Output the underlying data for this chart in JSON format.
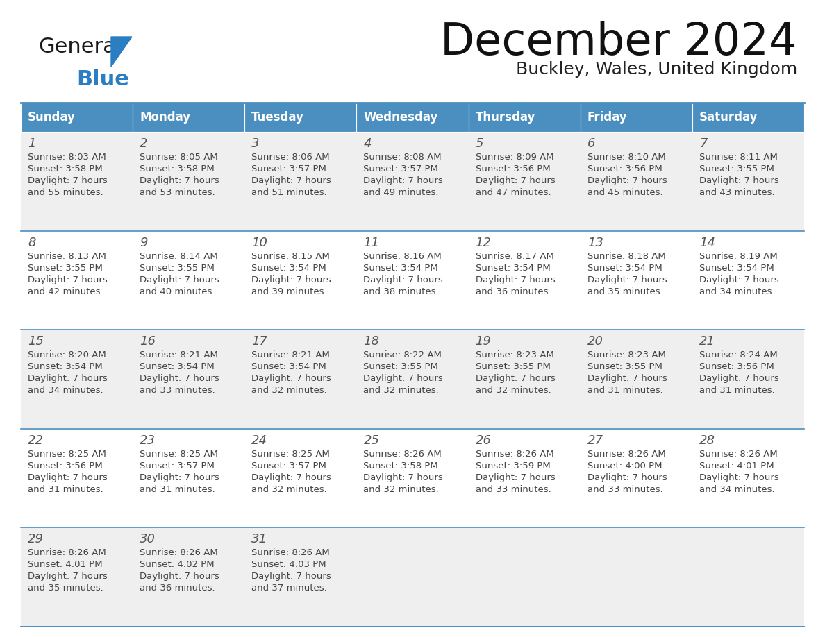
{
  "title": "December 2024",
  "subtitle": "Buckley, Wales, United Kingdom",
  "header_bg": "#4A8FC0",
  "header_text_color": "#FFFFFF",
  "days": [
    "Sunday",
    "Monday",
    "Tuesday",
    "Wednesday",
    "Thursday",
    "Friday",
    "Saturday"
  ],
  "row_bg_even": "#EFEFEF",
  "row_bg_odd": "#FFFFFF",
  "cell_data": [
    [
      {
        "day": 1,
        "sunrise": "8:03 AM",
        "sunset": "3:58 PM",
        "daylight": "7 hours\nand 55 minutes."
      },
      {
        "day": 2,
        "sunrise": "8:05 AM",
        "sunset": "3:58 PM",
        "daylight": "7 hours\nand 53 minutes."
      },
      {
        "day": 3,
        "sunrise": "8:06 AM",
        "sunset": "3:57 PM",
        "daylight": "7 hours\nand 51 minutes."
      },
      {
        "day": 4,
        "sunrise": "8:08 AM",
        "sunset": "3:57 PM",
        "daylight": "7 hours\nand 49 minutes."
      },
      {
        "day": 5,
        "sunrise": "8:09 AM",
        "sunset": "3:56 PM",
        "daylight": "7 hours\nand 47 minutes."
      },
      {
        "day": 6,
        "sunrise": "8:10 AM",
        "sunset": "3:56 PM",
        "daylight": "7 hours\nand 45 minutes."
      },
      {
        "day": 7,
        "sunrise": "8:11 AM",
        "sunset": "3:55 PM",
        "daylight": "7 hours\nand 43 minutes."
      }
    ],
    [
      {
        "day": 8,
        "sunrise": "8:13 AM",
        "sunset": "3:55 PM",
        "daylight": "7 hours\nand 42 minutes."
      },
      {
        "day": 9,
        "sunrise": "8:14 AM",
        "sunset": "3:55 PM",
        "daylight": "7 hours\nand 40 minutes."
      },
      {
        "day": 10,
        "sunrise": "8:15 AM",
        "sunset": "3:54 PM",
        "daylight": "7 hours\nand 39 minutes."
      },
      {
        "day": 11,
        "sunrise": "8:16 AM",
        "sunset": "3:54 PM",
        "daylight": "7 hours\nand 38 minutes."
      },
      {
        "day": 12,
        "sunrise": "8:17 AM",
        "sunset": "3:54 PM",
        "daylight": "7 hours\nand 36 minutes."
      },
      {
        "day": 13,
        "sunrise": "8:18 AM",
        "sunset": "3:54 PM",
        "daylight": "7 hours\nand 35 minutes."
      },
      {
        "day": 14,
        "sunrise": "8:19 AM",
        "sunset": "3:54 PM",
        "daylight": "7 hours\nand 34 minutes."
      }
    ],
    [
      {
        "day": 15,
        "sunrise": "8:20 AM",
        "sunset": "3:54 PM",
        "daylight": "7 hours\nand 34 minutes."
      },
      {
        "day": 16,
        "sunrise": "8:21 AM",
        "sunset": "3:54 PM",
        "daylight": "7 hours\nand 33 minutes."
      },
      {
        "day": 17,
        "sunrise": "8:21 AM",
        "sunset": "3:54 PM",
        "daylight": "7 hours\nand 32 minutes."
      },
      {
        "day": 18,
        "sunrise": "8:22 AM",
        "sunset": "3:55 PM",
        "daylight": "7 hours\nand 32 minutes."
      },
      {
        "day": 19,
        "sunrise": "8:23 AM",
        "sunset": "3:55 PM",
        "daylight": "7 hours\nand 32 minutes."
      },
      {
        "day": 20,
        "sunrise": "8:23 AM",
        "sunset": "3:55 PM",
        "daylight": "7 hours\nand 31 minutes."
      },
      {
        "day": 21,
        "sunrise": "8:24 AM",
        "sunset": "3:56 PM",
        "daylight": "7 hours\nand 31 minutes."
      }
    ],
    [
      {
        "day": 22,
        "sunrise": "8:25 AM",
        "sunset": "3:56 PM",
        "daylight": "7 hours\nand 31 minutes."
      },
      {
        "day": 23,
        "sunrise": "8:25 AM",
        "sunset": "3:57 PM",
        "daylight": "7 hours\nand 31 minutes."
      },
      {
        "day": 24,
        "sunrise": "8:25 AM",
        "sunset": "3:57 PM",
        "daylight": "7 hours\nand 32 minutes."
      },
      {
        "day": 25,
        "sunrise": "8:26 AM",
        "sunset": "3:58 PM",
        "daylight": "7 hours\nand 32 minutes."
      },
      {
        "day": 26,
        "sunrise": "8:26 AM",
        "sunset": "3:59 PM",
        "daylight": "7 hours\nand 33 minutes."
      },
      {
        "day": 27,
        "sunrise": "8:26 AM",
        "sunset": "4:00 PM",
        "daylight": "7 hours\nand 33 minutes."
      },
      {
        "day": 28,
        "sunrise": "8:26 AM",
        "sunset": "4:01 PM",
        "daylight": "7 hours\nand 34 minutes."
      }
    ],
    [
      {
        "day": 29,
        "sunrise": "8:26 AM",
        "sunset": "4:01 PM",
        "daylight": "7 hours\nand 35 minutes."
      },
      {
        "day": 30,
        "sunrise": "8:26 AM",
        "sunset": "4:02 PM",
        "daylight": "7 hours\nand 36 minutes."
      },
      {
        "day": 31,
        "sunrise": "8:26 AM",
        "sunset": "4:03 PM",
        "daylight": "7 hours\nand 37 minutes."
      },
      null,
      null,
      null,
      null
    ]
  ],
  "logo_color_general": "#1a1a1a",
  "logo_color_blue": "#2B7EC1",
  "logo_triangle_color": "#2B7EC1",
  "divider_color": "#4A8FC0",
  "text_color_day_num": "#555555",
  "text_color_info": "#444444"
}
